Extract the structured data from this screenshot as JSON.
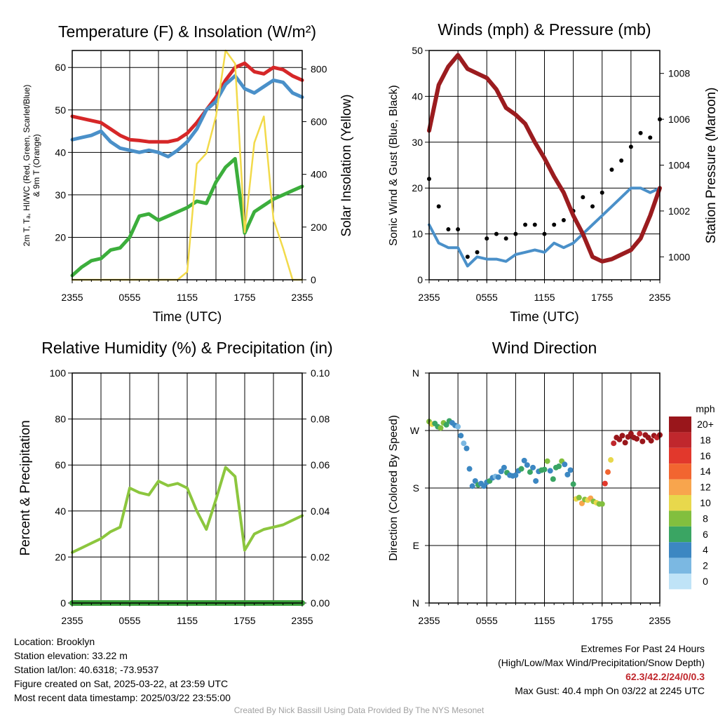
{
  "chart_data": [
    {
      "type": "line",
      "title": "Temperature (F) & Insolation (W/m²)",
      "xlabel": "Time (UTC)",
      "ylabel_line1": "2m T, Tₐ, HI/WC (Red, Green, Scarlet/Blue)",
      "ylabel_line2": "& 9m T (Orange)",
      "y2label": "Solar Insolation (Yellow)",
      "x_ticks": [
        "2355",
        "0555",
        "1155",
        "1755",
        "2355"
      ],
      "ylim": [
        10,
        64
      ],
      "y_ticks": [
        20,
        30,
        40,
        50,
        60
      ],
      "y2lim": [
        0,
        870
      ],
      "y2_ticks": [
        0,
        200,
        400,
        600,
        800
      ],
      "x_hours": [
        0,
        1,
        2,
        3,
        4,
        5,
        6,
        7,
        8,
        9,
        10,
        11,
        12,
        13,
        14,
        15,
        16,
        17,
        18,
        19,
        20,
        21,
        22,
        23,
        24
      ],
      "series": [
        {
          "color": "#d62728",
          "values": [
            48.5,
            48,
            47.5,
            47,
            45.5,
            44,
            43,
            42.8,
            42.5,
            42.5,
            42.5,
            43,
            44.5,
            47,
            50,
            53,
            57,
            60,
            61,
            59,
            58.5,
            60,
            59.5,
            58,
            57
          ]
        },
        {
          "color": "#4a90c9",
          "values": [
            43,
            43.5,
            44,
            45,
            42.5,
            41,
            40.5,
            40,
            40.5,
            40,
            39,
            40.5,
            42.5,
            45.5,
            50,
            52,
            56,
            58,
            55,
            54,
            55.5,
            57,
            56.5,
            54,
            53
          ]
        },
        {
          "color": "#3cae3c",
          "values": [
            11,
            13,
            14.5,
            15,
            17,
            17.5,
            20,
            25,
            25.5,
            24,
            25,
            26,
            27,
            28.5,
            28,
            33,
            36.5,
            38.5,
            21,
            26,
            27.5,
            29,
            30,
            31,
            32
          ]
        },
        {
          "color": "#f2da4a",
          "axis": "y2",
          "values": [
            0,
            0,
            0,
            0,
            0,
            0,
            0,
            0,
            0,
            0,
            0,
            0,
            30,
            440,
            480,
            620,
            870,
            820,
            180,
            520,
            620,
            230,
            120,
            0,
            0
          ]
        }
      ]
    },
    {
      "type": "line",
      "title": "Winds (mph) & Pressure (mb)",
      "xlabel": "Time (UTC)",
      "ylabel": "Sonic Wind & Gust (Blue, Black)",
      "y2label": "Station Pressure (Maroon)",
      "x_ticks": [
        "2355",
        "0555",
        "1155",
        "1755",
        "2355"
      ],
      "ylim": [
        0,
        50
      ],
      "y_ticks": [
        0,
        10,
        20,
        30,
        40,
        50
      ],
      "y2lim": [
        999.0,
        1009.0
      ],
      "y2_ticks": [
        1000,
        1002,
        1004,
        1006,
        1008
      ],
      "x_hours": [
        0,
        1,
        2,
        3,
        4,
        5,
        6,
        7,
        8,
        9,
        10,
        11,
        12,
        13,
        14,
        15,
        16,
        17,
        18,
        19,
        20,
        21,
        22,
        23,
        24
      ],
      "series": [
        {
          "color": "#4a90c9",
          "values": [
            12,
            8,
            7,
            7,
            3,
            5,
            4.5,
            4.5,
            4,
            5.5,
            6,
            6.5,
            6,
            8,
            7,
            8,
            10,
            12,
            14,
            16,
            18,
            20,
            20,
            19,
            20
          ]
        },
        {
          "color": "#000000",
          "marker": "dot",
          "values": [
            22,
            16,
            11,
            11,
            5,
            6,
            9,
            10,
            9,
            10,
            12,
            12,
            10,
            12,
            13,
            15,
            18,
            16,
            19,
            24,
            26,
            29,
            32,
            31,
            35
          ]
        },
        {
          "color": "#9b1c1f",
          "axis": "y2",
          "values": [
            1005.5,
            1007.5,
            1008.3,
            1008.8,
            1008.2,
            1008.0,
            1007.8,
            1007.3,
            1006.5,
            1006.2,
            1005.8,
            1005.0,
            1004.3,
            1003.5,
            1002.8,
            1001.8,
            1001.0,
            1000.0,
            999.8,
            999.9,
            1000.1,
            1000.3,
            1000.8,
            1001.8,
            1003.0
          ]
        }
      ]
    },
    {
      "type": "line",
      "title": "Relative Humidity (%) & Precipitation (in)",
      "ylabel": "Percent & Precipitation",
      "x_ticks": [
        "2355",
        "0555",
        "1155",
        "1755",
        "2355"
      ],
      "ylim": [
        0,
        100
      ],
      "y_ticks": [
        0,
        20,
        40,
        60,
        80,
        100
      ],
      "y2lim": [
        0,
        0.1
      ],
      "y2_ticks": [
        "0.00",
        "0.02",
        "0.04",
        "0.06",
        "0.08",
        "0.10"
      ],
      "x_hours": [
        0,
        1,
        2,
        3,
        4,
        5,
        6,
        7,
        8,
        9,
        10,
        11,
        12,
        13,
        14,
        15,
        16,
        17,
        18,
        19,
        20,
        21,
        22,
        23,
        24
      ],
      "series": [
        {
          "color": "#8cc63e",
          "values": [
            22,
            24,
            26,
            28,
            31,
            33,
            50,
            48,
            47,
            53,
            51,
            52,
            50,
            40,
            32,
            45,
            59,
            55,
            23,
            30,
            32,
            33,
            34,
            36,
            38
          ]
        },
        {
          "color": "#3a9e3a",
          "axis": "y2",
          "values": [
            0,
            0,
            0,
            0,
            0,
            0,
            0,
            0,
            0,
            0,
            0,
            0,
            0,
            0,
            0,
            0,
            0,
            0,
            0,
            0,
            0,
            0,
            0,
            0,
            0
          ]
        }
      ]
    },
    {
      "type": "scatter",
      "title": "Wind Direction",
      "ylabel": "Direction (Colored By Speed)",
      "x_ticks": [
        "2355",
        "0555",
        "1155",
        "1755",
        "2355"
      ],
      "ylim": [
        0,
        360
      ],
      "y_ticks": [
        "N",
        "E",
        "S",
        "W",
        "N"
      ],
      "colorbar_title": "mph",
      "colorbar_labels": [
        "20+",
        "18",
        "16",
        "14",
        "12",
        "10",
        "8",
        "6",
        "4",
        "2",
        "0"
      ],
      "colorbar_colors": [
        "#99161b",
        "#c0272d",
        "#e2382c",
        "#f26530",
        "#f8a54d",
        "#e8d84c",
        "#82bf3e",
        "#3aa563",
        "#3c87c2",
        "#7bb8e2",
        "#bfe3f7"
      ],
      "x_hours": [
        0,
        0.3,
        0.6,
        0.9,
        1.2,
        1.5,
        1.8,
        2.1,
        2.4,
        2.7,
        3,
        3.3,
        3.6,
        3.9,
        4.2,
        4.5,
        4.8,
        5.1,
        5.4,
        5.7,
        6,
        6.3,
        6.6,
        6.9,
        7.2,
        7.5,
        7.8,
        8.1,
        8.4,
        8.7,
        9,
        9.3,
        9.6,
        9.9,
        10.2,
        10.5,
        10.8,
        11.1,
        11.4,
        11.7,
        12,
        12.3,
        12.6,
        12.9,
        13.2,
        13.5,
        13.8,
        14.1,
        14.4,
        14.7,
        15,
        15.3,
        15.6,
        15.9,
        16.2,
        16.5,
        16.8,
        17.1,
        17.4,
        17.7,
        18,
        18.3,
        18.6,
        18.9,
        19.2,
        19.5,
        19.8,
        20.1,
        20.4,
        20.7,
        21,
        21.3,
        21.6,
        21.9,
        22.2,
        22.5,
        22.8,
        23.1,
        23.4,
        23.7,
        24
      ],
      "values": [
        284,
        280,
        281,
        276,
        274,
        282,
        279,
        285,
        282,
        278,
        276,
        262,
        250,
        242,
        210,
        183,
        191,
        185,
        187,
        183,
        189,
        191,
        196,
        198,
        197,
        206,
        212,
        204,
        200,
        199,
        200,
        207,
        210,
        223,
        216,
        205,
        212,
        191,
        206,
        208,
        209,
        222,
        207,
        194,
        212,
        214,
        222,
        217,
        201,
        208,
        186,
        163,
        165,
        156,
        162,
        161,
        164,
        159,
        157,
        155,
        155,
        187,
        205,
        224,
        250,
        259,
        256,
        262,
        251,
        260,
        265,
        259,
        257,
        265,
        253,
        263,
        259,
        254,
        262,
        259,
        263
      ],
      "speeds": [
        8,
        10,
        6,
        5,
        7,
        8,
        6,
        5,
        4,
        3,
        1,
        4,
        2,
        3,
        4,
        3,
        4,
        5,
        4,
        3,
        4,
        6,
        4,
        2,
        3,
        3,
        4,
        5,
        4,
        4,
        3,
        4,
        5,
        4,
        4,
        6,
        3,
        4,
        4,
        5,
        5,
        8,
        4,
        6,
        6,
        5,
        7,
        3,
        4,
        4,
        5,
        10,
        8,
        12,
        8,
        10,
        12,
        7,
        9,
        8,
        8,
        16,
        14,
        10,
        18,
        20,
        22,
        20,
        20,
        21,
        20,
        22,
        20,
        18,
        21,
        20,
        22,
        20,
        19,
        17,
        20
      ]
    }
  ],
  "footer": {
    "location": "Location: Brooklyn",
    "elevation": "Station elevation: 33.22 m",
    "latlon": "Station lat/lon: 40.6318; -73.9537",
    "created": "Figure created on Sat, 2025-03-22, at 23:59 UTC",
    "recent": "Most recent data timestamp: 2025/03/22 23:55:00",
    "extremes_title": "Extremes For Past 24 Hours",
    "extremes_sub": "(High/Low/Max Wind/Precipitation/Snow Depth)",
    "extremes_values": "62.3/42.2/24/0/0.3",
    "max_gust": "Max Gust: 40.4 mph On 03/22 at 2245 UTC",
    "credit": "Created By Nick Bassill Using Data Provided By The NYS Mesonet"
  }
}
